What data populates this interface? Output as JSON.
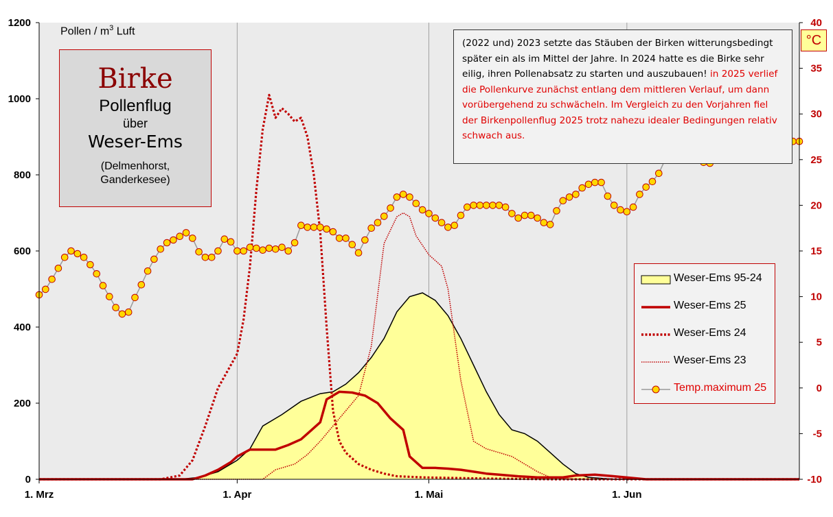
{
  "chart_data": {
    "type": "line",
    "title": "Birke",
    "subtitle_lines": [
      "Pollenflug",
      "über",
      "Weser-Ems",
      "(Delmenhorst,",
      "Ganderkesee)"
    ],
    "ylabel": "Pollen / m³ Luft",
    "ylabel_parts": {
      "base": "Pollen / m",
      "sup": "3",
      "tail": " Luft"
    },
    "y2label": "°C",
    "ylim": [
      0,
      1200
    ],
    "y2lim": [
      -10,
      40
    ],
    "yticks": [
      "0",
      "200",
      "400",
      "600",
      "800",
      "1000",
      "1200"
    ],
    "y2ticks": [
      "-10",
      "-5",
      "0",
      "5",
      "10",
      "15",
      "20",
      "25",
      "30",
      "35",
      "40"
    ],
    "xlim": [
      0,
      119
    ],
    "xticks": [
      {
        "day": 0,
        "label": "1. Mrz"
      },
      {
        "day": 31,
        "label": "1. Apr"
      },
      {
        "day": 61,
        "label": "1. Mai"
      },
      {
        "day": 92,
        "label": "1. Jun"
      }
    ],
    "grid": "vertical",
    "legend_position": "right",
    "series": [
      {
        "name": "Weser-Ems 95-24",
        "style": "area",
        "color": "#ffff99",
        "edge": "#000000",
        "points": [
          [
            0,
            0
          ],
          [
            22,
            0
          ],
          [
            25,
            5
          ],
          [
            28,
            20
          ],
          [
            31,
            50
          ],
          [
            33,
            80
          ],
          [
            35,
            140
          ],
          [
            38,
            170
          ],
          [
            41,
            205
          ],
          [
            44,
            225
          ],
          [
            46,
            230
          ],
          [
            48,
            250
          ],
          [
            50,
            280
          ],
          [
            52,
            320
          ],
          [
            54,
            370
          ],
          [
            56,
            440
          ],
          [
            58,
            480
          ],
          [
            60,
            490
          ],
          [
            62,
            470
          ],
          [
            64,
            430
          ],
          [
            66,
            370
          ],
          [
            68,
            300
          ],
          [
            70,
            230
          ],
          [
            72,
            170
          ],
          [
            74,
            130
          ],
          [
            76,
            120
          ],
          [
            78,
            100
          ],
          [
            80,
            70
          ],
          [
            82,
            40
          ],
          [
            84,
            15
          ],
          [
            86,
            5
          ],
          [
            90,
            0
          ],
          [
            119,
            0
          ]
        ]
      },
      {
        "name": "Weser-Ems 25",
        "style": "solid",
        "color": "#c00000",
        "points": [
          [
            0,
            0
          ],
          [
            24,
            0
          ],
          [
            26,
            10
          ],
          [
            28,
            25
          ],
          [
            30,
            45
          ],
          [
            31,
            60
          ],
          [
            33,
            78
          ],
          [
            35,
            78
          ],
          [
            37,
            78
          ],
          [
            39,
            90
          ],
          [
            41,
            105
          ],
          [
            42,
            120
          ],
          [
            44,
            150
          ],
          [
            45,
            210
          ],
          [
            47,
            230
          ],
          [
            49,
            228
          ],
          [
            51,
            220
          ],
          [
            53,
            200
          ],
          [
            55,
            160
          ],
          [
            57,
            130
          ],
          [
            58,
            60
          ],
          [
            60,
            30
          ],
          [
            62,
            30
          ],
          [
            64,
            28
          ],
          [
            66,
            25
          ],
          [
            68,
            20
          ],
          [
            70,
            15
          ],
          [
            72,
            12
          ],
          [
            75,
            8
          ],
          [
            78,
            5
          ],
          [
            82,
            5
          ],
          [
            84,
            10
          ],
          [
            87,
            12
          ],
          [
            90,
            8
          ],
          [
            93,
            3
          ],
          [
            95,
            0
          ],
          [
            119,
            0
          ]
        ]
      },
      {
        "name": "Weser-Ems 24",
        "style": "dotted",
        "color": "#c00000",
        "points": [
          [
            0,
            0
          ],
          [
            19,
            0
          ],
          [
            22,
            10
          ],
          [
            24,
            50
          ],
          [
            26,
            140
          ],
          [
            28,
            240
          ],
          [
            30,
            300
          ],
          [
            31,
            330
          ],
          [
            32,
            420
          ],
          [
            33,
            560
          ],
          [
            34,
            760
          ],
          [
            35,
            920
          ],
          [
            36,
            1010
          ],
          [
            37,
            950
          ],
          [
            38,
            975
          ],
          [
            39,
            960
          ],
          [
            40,
            940
          ],
          [
            41,
            950
          ],
          [
            42,
            900
          ],
          [
            43,
            800
          ],
          [
            44,
            650
          ],
          [
            45,
            400
          ],
          [
            46,
            180
          ],
          [
            47,
            100
          ],
          [
            48,
            70
          ],
          [
            50,
            40
          ],
          [
            52,
            25
          ],
          [
            54,
            15
          ],
          [
            56,
            8
          ],
          [
            60,
            5
          ],
          [
            70,
            2
          ],
          [
            80,
            0
          ],
          [
            119,
            0
          ]
        ]
      },
      {
        "name": "Weser-Ems 23",
        "style": "dotted-fine",
        "color": "#c00000",
        "points": [
          [
            0,
            0
          ],
          [
            35,
            0
          ],
          [
            37,
            25
          ],
          [
            40,
            40
          ],
          [
            42,
            65
          ],
          [
            44,
            100
          ],
          [
            46,
            140
          ],
          [
            48,
            180
          ],
          [
            50,
            220
          ],
          [
            52,
            350
          ],
          [
            54,
            620
          ],
          [
            56,
            690
          ],
          [
            57,
            700
          ],
          [
            58,
            690
          ],
          [
            59,
            640
          ],
          [
            61,
            590
          ],
          [
            63,
            560
          ],
          [
            64,
            500
          ],
          [
            66,
            260
          ],
          [
            68,
            100
          ],
          [
            70,
            80
          ],
          [
            72,
            70
          ],
          [
            74,
            60
          ],
          [
            76,
            40
          ],
          [
            78,
            20
          ],
          [
            80,
            5
          ],
          [
            84,
            0
          ],
          [
            119,
            0
          ]
        ]
      }
    ],
    "temperature": {
      "name": "Temp.maximum 25",
      "color": "#ffd700",
      "edge": "#c00000",
      "line": "#9a9a9a",
      "x": [
        0,
        1,
        2,
        3,
        4,
        5,
        6,
        7,
        8,
        9,
        10,
        11,
        12,
        13,
        14,
        15,
        16,
        17,
        18,
        19,
        20,
        21,
        22,
        23,
        24,
        25,
        26,
        27,
        28,
        29,
        30,
        31,
        32,
        33,
        34,
        35,
        36,
        37,
        38,
        39,
        40,
        41,
        42,
        43,
        44,
        45,
        46,
        47,
        48,
        49,
        50,
        51,
        52,
        53,
        54,
        55,
        56,
        57,
        58,
        59,
        60,
        61,
        62,
        63,
        64,
        65,
        66,
        67,
        68,
        69,
        70,
        71,
        72,
        73,
        74,
        75,
        76,
        77,
        78,
        79,
        80,
        81,
        82,
        83,
        84,
        85,
        86,
        87,
        88,
        89,
        90,
        91,
        92,
        93,
        94,
        95,
        96,
        97,
        98,
        99,
        100,
        101,
        102,
        103,
        104,
        105,
        106,
        107,
        108,
        109,
        110,
        111,
        112,
        113,
        114,
        115,
        116,
        117,
        118,
        119
      ],
      "values": [
        10.2,
        10.8,
        11.9,
        13.1,
        14.3,
        15.0,
        14.7,
        14.3,
        13.5,
        12.5,
        11.2,
        10.0,
        8.8,
        8.1,
        8.3,
        9.9,
        11.3,
        12.8,
        14.1,
        15.2,
        15.9,
        16.2,
        16.6,
        17.0,
        16.4,
        14.9,
        14.3,
        14.3,
        15.0,
        16.3,
        16.0,
        15.0,
        15.0,
        15.4,
        15.3,
        15.1,
        15.3,
        15.2,
        15.4,
        15.0,
        15.9,
        17.8,
        17.6,
        17.6,
        17.6,
        17.4,
        17.1,
        16.4,
        16.4,
        15.7,
        14.8,
        16.2,
        17.5,
        18.1,
        18.8,
        19.7,
        20.9,
        21.2,
        20.9,
        20.2,
        19.5,
        19.1,
        18.6,
        18.1,
        17.6,
        17.8,
        18.9,
        19.8,
        20.0,
        20.0,
        20.0,
        20.0,
        20.0,
        19.8,
        19.1,
        18.6,
        18.9,
        18.9,
        18.6,
        18.1,
        17.9,
        19.4,
        20.5,
        20.9,
        21.2,
        21.9,
        22.3,
        22.5,
        22.5,
        21.0,
        20.0,
        19.5,
        19.3,
        19.8,
        21.2,
        22.0,
        22.6,
        23.5,
        25.0,
        25.5,
        25.9,
        25.9,
        25.5,
        25.0,
        24.7,
        24.6,
        25.0,
        25.6,
        26.2,
        26.8,
        27.0,
        27.0,
        26.9,
        26.8,
        26.9,
        27.0,
        27.1,
        27.0,
        27.0,
        27.0
      ]
    },
    "annotation": {
      "black": "(2022 und) 2023 setzte  das Stäuben der Birken witterungsbedingt  später ein als im Mittel der Jahre. In 2024 hatte es die Birke sehr eilig, ihren Pollenabsatz zu starten und auszubauen!",
      "red": " in 2025 verlief die Pollenkurve zunächst entlang dem mittleren Verlauf, um dann  vorübergehend  zu schwächeln. Im Vergleich zu  den Vorjahren fiel der Birkenpollenflug  2025 trotz nahezu idealer Bedingungen relativ schwach aus."
    }
  }
}
